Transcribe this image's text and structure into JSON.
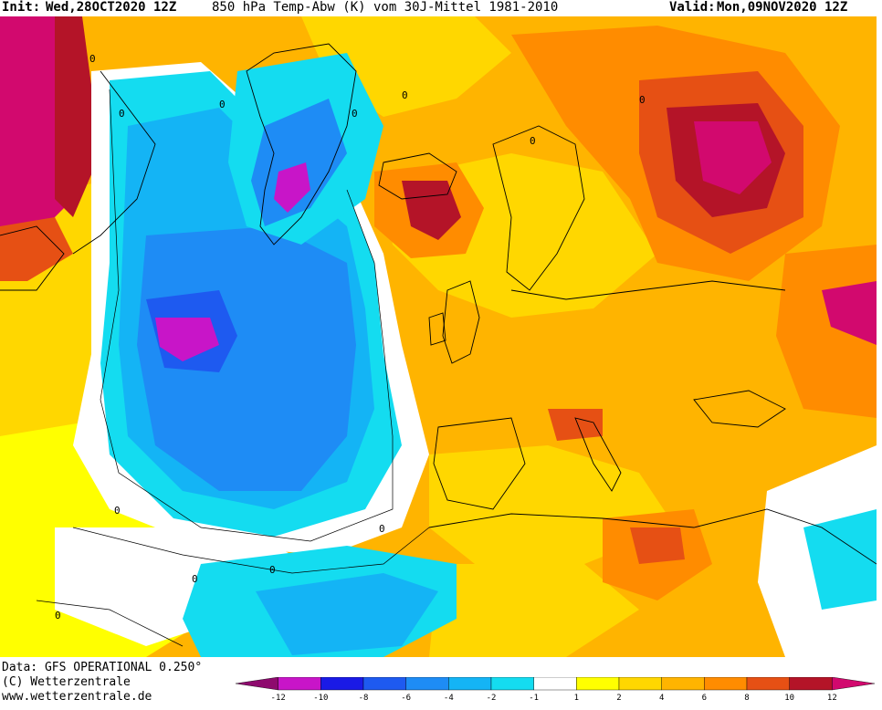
{
  "header": {
    "init_label": "Init:",
    "init_value": "Wed,28OCT2020 12Z",
    "title": "850 hPa Temp-Abw (K) vom 30J-Mittel 1981-2010",
    "valid_label": "Valid:",
    "valid_value": "Mon,09NOV2020 12Z"
  },
  "footer": {
    "data_line": "Data: GFS OPERATIONAL 0.250°",
    "copyright_line": "(C) Wetterzentrale",
    "url_line": "www.wetterzentrale.de"
  },
  "legend": {
    "ticks": [
      "-12",
      "-10",
      "-8",
      "-6",
      "-4",
      "-2",
      "-1",
      "1",
      "2",
      "4",
      "6",
      "8",
      "10",
      "12"
    ],
    "colors": [
      "#8e0a6e",
      "#c815c8",
      "#1a1ae6",
      "#1e5af0",
      "#1e8cf5",
      "#14b4f5",
      "#14dcf0",
      "#ffffff",
      "#ffff00",
      "#ffd700",
      "#ffb400",
      "#ff8c00",
      "#e65014",
      "#b41428",
      "#d2096e"
    ]
  },
  "map": {
    "contour_labels": [
      "0",
      "0",
      "0",
      "0",
      "0",
      "0",
      "0",
      "0",
      "0",
      "0",
      "0",
      "0"
    ],
    "colors": {
      "ocean_white": "#ffffff",
      "cyan": "#14dcf0",
      "light_blue": "#14b4f5",
      "blue": "#1e8cf5",
      "deep_blue": "#1e5af0",
      "purple": "#c815c8",
      "yellow": "#ffff00",
      "gold": "#ffd700",
      "orange_light": "#ffb400",
      "orange": "#ff8c00",
      "dark_orange": "#e65014",
      "red": "#b41428",
      "magenta": "#d2096e"
    }
  }
}
